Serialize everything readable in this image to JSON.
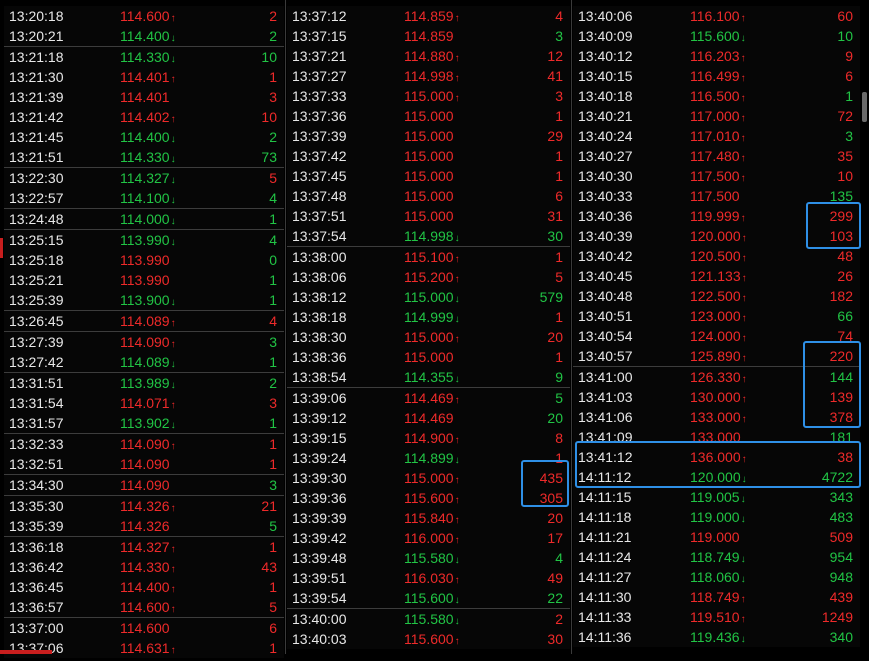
{
  "columns": [
    [
      [
        "13:20:18",
        "114.600",
        "up",
        "2",
        "up",
        false
      ],
      [
        "13:20:21",
        "114.400",
        "dn",
        "2",
        "dn",
        false
      ],
      [
        "13:21:18",
        "114.330",
        "dn",
        "10",
        "dn",
        true
      ],
      [
        "13:21:30",
        "114.401",
        "up",
        "1",
        "up",
        false
      ],
      [
        "13:21:39",
        "114.401",
        "eq",
        "3",
        "up",
        false
      ],
      [
        "13:21:42",
        "114.402",
        "up",
        "10",
        "up",
        false
      ],
      [
        "13:21:45",
        "114.400",
        "dn",
        "2",
        "dn",
        false
      ],
      [
        "13:21:51",
        "114.330",
        "dn",
        "73",
        "dn",
        false
      ],
      [
        "13:22:30",
        "114.327",
        "dn",
        "5",
        "up",
        true
      ],
      [
        "13:22:57",
        "114.100",
        "dn",
        "4",
        "dn",
        false
      ],
      [
        "13:24:48",
        "114.000",
        "dn",
        "1",
        "dn",
        true
      ],
      [
        "13:25:15",
        "113.990",
        "dn",
        "4",
        "dn",
        true
      ],
      [
        "13:25:18",
        "113.990",
        "eq",
        "0",
        "dn",
        false
      ],
      [
        "13:25:21",
        "113.990",
        "eq",
        "1",
        "dn",
        false
      ],
      [
        "13:25:39",
        "113.900",
        "dn",
        "1",
        "dn",
        false
      ],
      [
        "13:26:45",
        "114.089",
        "up",
        "4",
        "up",
        true
      ],
      [
        "13:27:39",
        "114.090",
        "up",
        "3",
        "dn",
        true
      ],
      [
        "13:27:42",
        "114.089",
        "dn",
        "1",
        "dn",
        false
      ],
      [
        "13:31:51",
        "113.989",
        "dn",
        "2",
        "dn",
        true
      ],
      [
        "13:31:54",
        "114.071",
        "up",
        "3",
        "up",
        false
      ],
      [
        "13:31:57",
        "113.902",
        "dn",
        "1",
        "dn",
        false
      ],
      [
        "13:32:33",
        "114.090",
        "up",
        "1",
        "up",
        true
      ],
      [
        "13:32:51",
        "114.090",
        "eq",
        "1",
        "up",
        false
      ],
      [
        "13:34:30",
        "114.090",
        "eq",
        "3",
        "dn",
        true
      ],
      [
        "13:35:30",
        "114.326",
        "up",
        "21",
        "up",
        true
      ],
      [
        "13:35:39",
        "114.326",
        "eq",
        "5",
        "dn",
        false
      ],
      [
        "13:36:18",
        "114.327",
        "up",
        "1",
        "up",
        true
      ],
      [
        "13:36:42",
        "114.330",
        "up",
        "43",
        "up",
        false
      ],
      [
        "13:36:45",
        "114.400",
        "up",
        "1",
        "up",
        false
      ],
      [
        "13:36:57",
        "114.600",
        "up",
        "5",
        "up",
        false
      ],
      [
        "13:37:00",
        "114.600",
        "eq",
        "6",
        "up",
        true
      ],
      [
        "13:37:06",
        "114.631",
        "up",
        "1",
        "up",
        false
      ]
    ],
    [
      [
        "13:37:12",
        "114.859",
        "up",
        "4",
        "up",
        false
      ],
      [
        "13:37:15",
        "114.859",
        "eq",
        "3",
        "dn",
        false
      ],
      [
        "13:37:21",
        "114.880",
        "up",
        "12",
        "up",
        false
      ],
      [
        "13:37:27",
        "114.998",
        "up",
        "41",
        "up",
        false
      ],
      [
        "13:37:33",
        "115.000",
        "up",
        "3",
        "up",
        false
      ],
      [
        "13:37:36",
        "115.000",
        "eq",
        "1",
        "up",
        false
      ],
      [
        "13:37:39",
        "115.000",
        "eq",
        "29",
        "up",
        false
      ],
      [
        "13:37:42",
        "115.000",
        "eq",
        "1",
        "up",
        false
      ],
      [
        "13:37:45",
        "115.000",
        "eq",
        "1",
        "up",
        false
      ],
      [
        "13:37:48",
        "115.000",
        "eq",
        "6",
        "up",
        false
      ],
      [
        "13:37:51",
        "115.000",
        "eq",
        "31",
        "up",
        false
      ],
      [
        "13:37:54",
        "114.998",
        "dn",
        "30",
        "dn",
        false
      ],
      [
        "13:38:00",
        "115.100",
        "up",
        "1",
        "up",
        true
      ],
      [
        "13:38:06",
        "115.200",
        "up",
        "5",
        "up",
        false
      ],
      [
        "13:38:12",
        "115.000",
        "dn",
        "579",
        "dn",
        false
      ],
      [
        "13:38:18",
        "114.999",
        "dn",
        "1",
        "up",
        false
      ],
      [
        "13:38:30",
        "115.000",
        "up",
        "20",
        "up",
        false
      ],
      [
        "13:38:36",
        "115.000",
        "eq",
        "1",
        "up",
        false
      ],
      [
        "13:38:54",
        "114.355",
        "dn",
        "9",
        "dn",
        false
      ],
      [
        "13:39:06",
        "114.469",
        "up",
        "5",
        "dn",
        true
      ],
      [
        "13:39:12",
        "114.469",
        "eq",
        "20",
        "dn",
        false
      ],
      [
        "13:39:15",
        "114.900",
        "up",
        "8",
        "up",
        false
      ],
      [
        "13:39:24",
        "114.899",
        "dn",
        "1",
        "up",
        false
      ],
      [
        "13:39:30",
        "115.000",
        "up",
        "435",
        "up",
        false
      ],
      [
        "13:39:36",
        "115.600",
        "up",
        "305",
        "up",
        false
      ],
      [
        "13:39:39",
        "115.840",
        "up",
        "20",
        "up",
        false
      ],
      [
        "13:39:42",
        "116.000",
        "up",
        "17",
        "up",
        false
      ],
      [
        "13:39:48",
        "115.580",
        "dn",
        "4",
        "dn",
        false
      ],
      [
        "13:39:51",
        "116.030",
        "up",
        "49",
        "up",
        false
      ],
      [
        "13:39:54",
        "115.600",
        "dn",
        "22",
        "dn",
        false
      ],
      [
        "13:40:00",
        "115.580",
        "dn",
        "2",
        "up",
        true
      ],
      [
        "13:40:03",
        "115.600",
        "up",
        "30",
        "up",
        false
      ]
    ],
    [
      [
        "13:40:06",
        "116.100",
        "up",
        "60",
        "up",
        false
      ],
      [
        "13:40:09",
        "115.600",
        "dn",
        "10",
        "dn",
        false
      ],
      [
        "13:40:12",
        "116.203",
        "up",
        "9",
        "up",
        false
      ],
      [
        "13:40:15",
        "116.499",
        "up",
        "6",
        "up",
        false
      ],
      [
        "13:40:18",
        "116.500",
        "up",
        "1",
        "dn",
        false
      ],
      [
        "13:40:21",
        "117.000",
        "up",
        "72",
        "up",
        false
      ],
      [
        "13:40:24",
        "117.010",
        "up",
        "3",
        "dn",
        false
      ],
      [
        "13:40:27",
        "117.480",
        "up",
        "35",
        "up",
        false
      ],
      [
        "13:40:30",
        "117.500",
        "up",
        "10",
        "up",
        false
      ],
      [
        "13:40:33",
        "117.500",
        "eq",
        "135",
        "dn",
        false
      ],
      [
        "13:40:36",
        "119.999",
        "up",
        "299",
        "up",
        false
      ],
      [
        "13:40:39",
        "120.000",
        "up",
        "103",
        "up",
        false
      ],
      [
        "13:40:42",
        "120.500",
        "up",
        "48",
        "up",
        false
      ],
      [
        "13:40:45",
        "121.133",
        "up",
        "26",
        "up",
        false
      ],
      [
        "13:40:48",
        "122.500",
        "up",
        "182",
        "up",
        false
      ],
      [
        "13:40:51",
        "123.000",
        "up",
        "66",
        "dn",
        false
      ],
      [
        "13:40:54",
        "124.000",
        "up",
        "74",
        "up",
        false
      ],
      [
        "13:40:57",
        "125.890",
        "up",
        "220",
        "up",
        false
      ],
      [
        "13:41:00",
        "126.330",
        "up",
        "144",
        "dn",
        true
      ],
      [
        "13:41:03",
        "130.000",
        "up",
        "139",
        "up",
        false
      ],
      [
        "13:41:06",
        "133.000",
        "up",
        "378",
        "up",
        false
      ],
      [
        "13:41:09",
        "133.000",
        "eq",
        "181",
        "dn",
        false
      ],
      [
        "13:41:12",
        "136.000",
        "up",
        "38",
        "up",
        false
      ],
      [
        "14:11:12",
        "120.000",
        "dn",
        "4722",
        "dn",
        false
      ],
      [
        "14:11:15",
        "119.005",
        "dn",
        "343",
        "dn",
        false
      ],
      [
        "14:11:18",
        "119.000",
        "dn",
        "483",
        "dn",
        false
      ],
      [
        "14:11:21",
        "119.000",
        "eq",
        "509",
        "up",
        false
      ],
      [
        "14:11:24",
        "118.749",
        "dn",
        "954",
        "dn",
        false
      ],
      [
        "14:11:27",
        "118.060",
        "dn",
        "948",
        "dn",
        false
      ],
      [
        "14:11:30",
        "118.749",
        "up",
        "439",
        "up",
        false
      ],
      [
        "14:11:33",
        "119.510",
        "up",
        "1249",
        "up",
        false
      ],
      [
        "14:11:36",
        "119.436",
        "dn",
        "340",
        "dn",
        false
      ]
    ]
  ],
  "colors": {
    "up": "#ee2a2a",
    "down": "#21c445",
    "highlight": "#2e8fe6"
  },
  "icons": {
    "up": "up-arrow-icon",
    "down": "down-arrow-icon"
  }
}
